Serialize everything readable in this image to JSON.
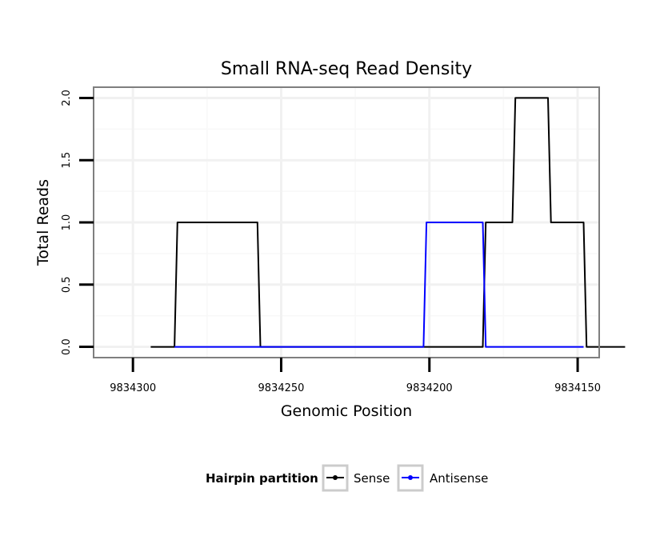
{
  "chart_data": {
    "type": "line",
    "title": "Small RNA-seq Read Density",
    "xlabel": "Genomic Position",
    "ylabel": "Total Reads",
    "x_reversed": true,
    "xlim": [
      9834313,
      9834143
    ],
    "ylim": [
      -0.08,
      2.08
    ],
    "x_ticks": [
      9834300,
      9834250,
      9834200,
      9834150
    ],
    "x_tick_labels": [
      "9834300",
      "9834250",
      "9834200",
      "9834150"
    ],
    "y_ticks": [
      0.0,
      0.5,
      1.0,
      1.5,
      2.0
    ],
    "y_tick_labels": [
      "0.0",
      "0.5",
      "1.0",
      "1.5",
      "2.0"
    ],
    "grid": true,
    "legend_position": "bottom",
    "legend_title": "Hairpin partition",
    "series": [
      {
        "name": "Sense",
        "color": "#000000",
        "x": [
          9834294,
          9834286,
          9834285,
          9834258,
          9834257,
          9834182,
          9834181,
          9834172,
          9834171,
          9834160,
          9834159,
          9834148,
          9834147,
          9834134
        ],
        "y": [
          0,
          0,
          1,
          1,
          0,
          0,
          1,
          1,
          2,
          2,
          1,
          1,
          0,
          0
        ]
      },
      {
        "name": "Antisense",
        "color": "#0000ff",
        "x": [
          9834286,
          9834202,
          9834201,
          9834182,
          9834181,
          9834148
        ],
        "y": [
          0,
          0,
          1,
          1,
          0,
          0
        ]
      }
    ]
  }
}
